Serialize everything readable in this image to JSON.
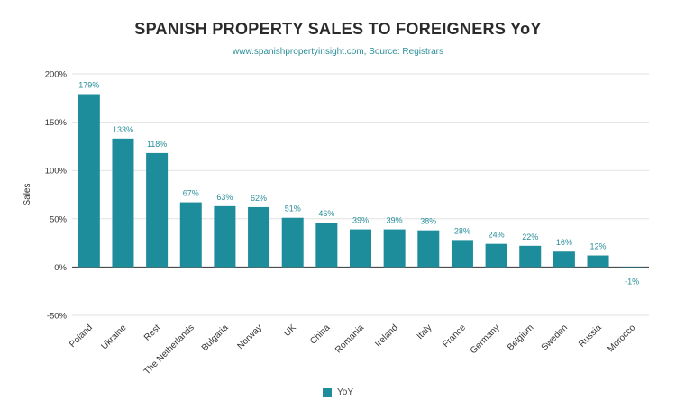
{
  "chart_data": {
    "type": "bar",
    "title": "SPANISH PROPERTY SALES TO FOREIGNERS YoY",
    "subtitle": "www.spanishpropertyinsight.com, Source: Registrars",
    "ylabel": "Sales",
    "xlabel": "",
    "ylim": [
      -50,
      200
    ],
    "yticks": [
      -50,
      0,
      50,
      100,
      150,
      200
    ],
    "ytick_labels": [
      "-50%",
      "0%",
      "50%",
      "100%",
      "150%",
      "200%"
    ],
    "grid": true,
    "legend_position": "bottom",
    "bar_color": "#1d8c9b",
    "categories": [
      "Poland",
      "Ukraine",
      "Rest",
      "The Netherlands",
      "Bulgaria",
      "Norway",
      "UK",
      "China",
      "Romania",
      "Ireland",
      "Italy",
      "France",
      "Germany",
      "Belgium",
      "Sweden",
      "Russia",
      "Morocco"
    ],
    "series": [
      {
        "name": "YoY",
        "values": [
          179,
          133,
          118,
          67,
          63,
          62,
          51,
          46,
          39,
          39,
          38,
          28,
          24,
          22,
          16,
          12,
          -1
        ],
        "labels": [
          "179%",
          "133%",
          "118%",
          "67%",
          "63%",
          "62%",
          "51%",
          "46%",
          "39%",
          "39%",
          "38%",
          "28%",
          "24%",
          "22%",
          "16%",
          "12%",
          "-1%"
        ]
      }
    ]
  }
}
